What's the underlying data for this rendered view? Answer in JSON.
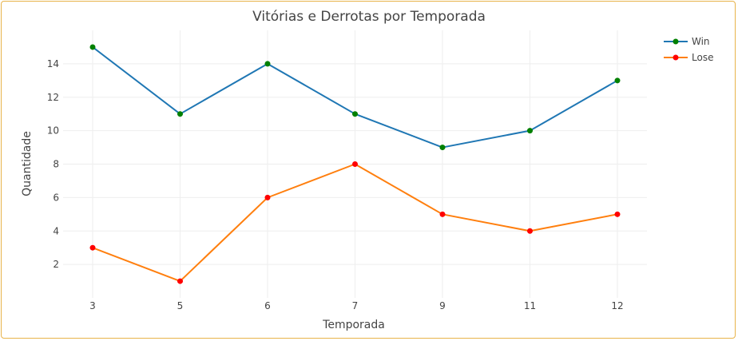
{
  "chart_data": {
    "type": "line",
    "title": "Vitórias e Derrotas por Temporada",
    "xlabel": "Temporada",
    "ylabel": "Quantidade",
    "categories": [
      "3",
      "5",
      "6",
      "7",
      "9",
      "11",
      "12"
    ],
    "ylim": [
      0,
      16
    ],
    "yticks": [
      2,
      4,
      6,
      8,
      10,
      12,
      14
    ],
    "grid": true,
    "legend_position": "top-right",
    "series": [
      {
        "name": "Win",
        "values": [
          15,
          11,
          14,
          11,
          9,
          10,
          13
        ],
        "line_color": "#1f77b4",
        "marker_color": "#008000"
      },
      {
        "name": "Lose",
        "values": [
          3,
          1,
          6,
          8,
          5,
          4,
          5
        ],
        "line_color": "#ff7f0e",
        "marker_color": "#ff0000"
      }
    ]
  },
  "frame": {
    "border_color": "#e8b34a"
  }
}
